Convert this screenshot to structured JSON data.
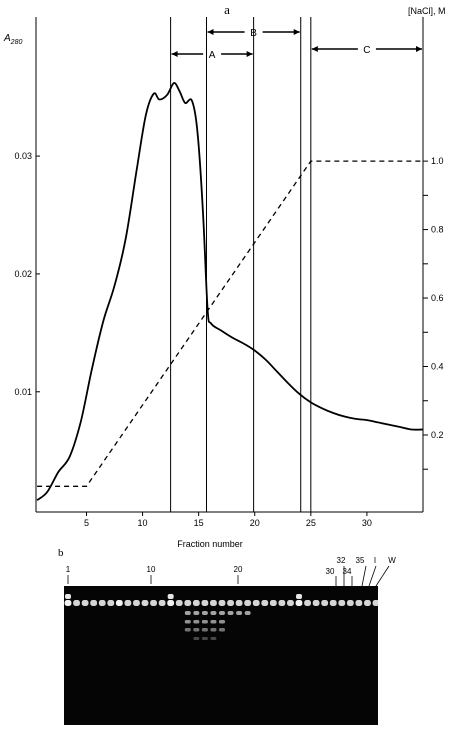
{
  "panel_a": {
    "label": "a",
    "ylabel_left": "A",
    "ylabel_left_sub": "280",
    "ylabel_right": "[NaCl], M",
    "xlabel": "Fraction number"
  },
  "panel_b": {
    "label": "b",
    "lane_labels": [
      "1",
      "10",
      "20",
      "30",
      "32",
      "34",
      "35",
      "I",
      "W"
    ]
  },
  "chart_data": [
    {
      "type": "line",
      "xlabel": "Fraction number",
      "xlim": [
        0.5,
        35
      ],
      "x_ticks": [
        5,
        10,
        15,
        20,
        25,
        30
      ],
      "series": [
        {
          "axis": "left",
          "style": "solid",
          "x": [
            0.6,
            1.5,
            2.5,
            3.5,
            4.5,
            5.5,
            6.5,
            7.5,
            8.5,
            9.5,
            10.3,
            11.0,
            11.5,
            12.2,
            12.8,
            13.3,
            13.8,
            14.4,
            14.9,
            15.4,
            15.8,
            16.1,
            17,
            18,
            19,
            20,
            21,
            22,
            23,
            24,
            25,
            26,
            27,
            28,
            29,
            30,
            31,
            32,
            33,
            34,
            35
          ],
          "values": [
            0.0008,
            0.0015,
            0.0032,
            0.0045,
            0.0075,
            0.012,
            0.016,
            0.019,
            0.023,
            0.029,
            0.0335,
            0.0353,
            0.0348,
            0.0352,
            0.0362,
            0.0355,
            0.0345,
            0.0347,
            0.032,
            0.025,
            0.017,
            0.0158,
            0.0152,
            0.0146,
            0.0141,
            0.0135,
            0.0127,
            0.0117,
            0.0107,
            0.0098,
            0.0091,
            0.0086,
            0.0082,
            0.0079,
            0.0077,
            0.0076,
            0.0074,
            0.0072,
            0.007,
            0.0068,
            0.0068
          ]
        },
        {
          "axis": "right",
          "style": "dashed",
          "x": [
            0.6,
            5,
            25,
            35
          ],
          "values": [
            0.05,
            0.05,
            1.0,
            1.0
          ]
        }
      ],
      "y_left_ticks": [
        "0.01",
        "0.02",
        "0.03"
      ],
      "y_left_tick_values": [
        0.01,
        0.02,
        0.03
      ],
      "ylim_left": [
        -0.0002,
        0.0418
      ],
      "y_right_ticks": [
        "0.2",
        "0.4",
        "0.6",
        "0.8",
        "1.0"
      ],
      "y_right_tick_values": [
        0.2,
        0.4,
        0.6,
        0.8,
        1.0
      ],
      "ylim_right": [
        -0.025,
        1.421
      ],
      "vertical_lines_at_fraction": [
        12.5,
        15.7,
        19.9,
        24.1,
        25.0
      ],
      "pools": [
        {
          "label": "A",
          "from": 12.5,
          "to": 19.9
        },
        {
          "label": "B",
          "from": 15.7,
          "to": 24.1
        },
        {
          "label": "C",
          "from": 25.0,
          "to": 35
        }
      ],
      "grid": false
    }
  ],
  "colors": {
    "ink": "#000000",
    "gel_bg": "#050505",
    "band": "#f2f2f2"
  }
}
